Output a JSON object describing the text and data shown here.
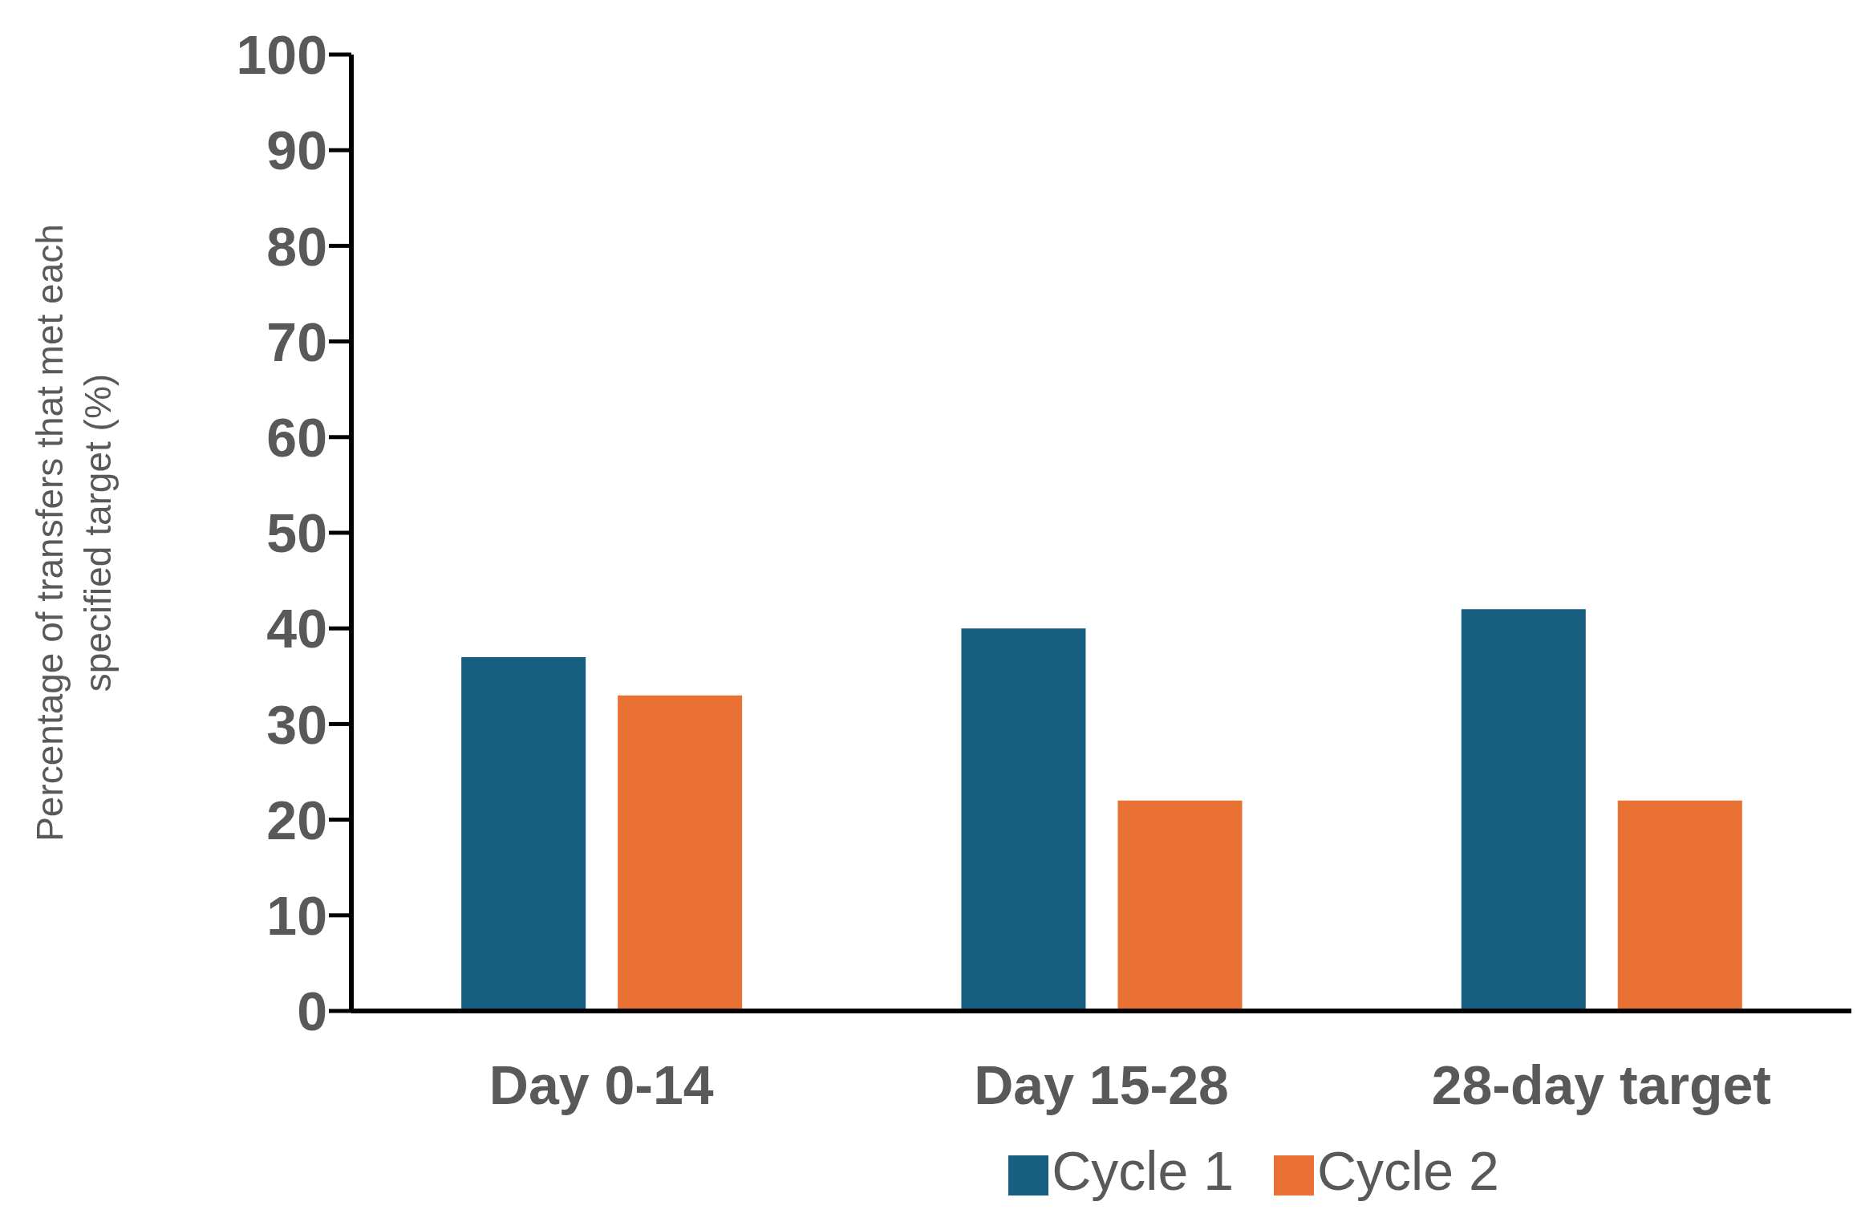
{
  "chart_data": {
    "type": "bar",
    "ylabel": "Percentage of transfers that met each specified target (%)",
    "categories": [
      "Day 0-14",
      "Day 15-28",
      "28-day target"
    ],
    "series": [
      {
        "name": "Cycle 1",
        "color": "#175f80",
        "values": [
          37,
          40,
          42
        ]
      },
      {
        "name": "Cycle 2",
        "color": "#e87133",
        "values": [
          33,
          22,
          22
        ]
      }
    ],
    "ylim": [
      0,
      100
    ],
    "yticks": [
      0,
      10,
      20,
      30,
      40,
      50,
      60,
      70,
      80,
      90,
      100
    ],
    "grid": false,
    "legend": "bottom"
  }
}
